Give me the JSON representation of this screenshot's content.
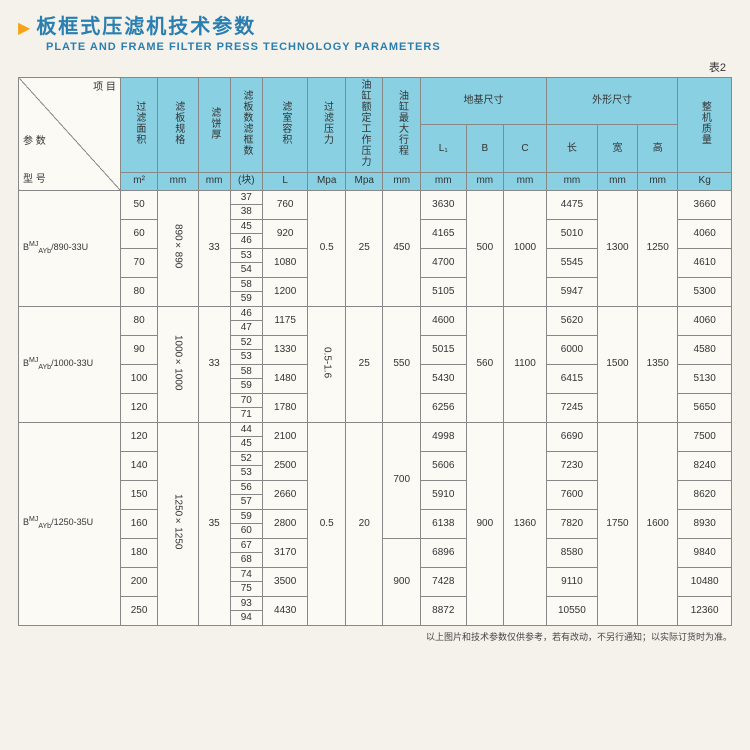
{
  "title": {
    "cn": "板框式压滤机技术参数",
    "en": "PLATE AND FRAME FILTER PRESS TECHNOLOGY PARAMETERS"
  },
  "table_label": "表2",
  "diag": {
    "top": "项 目",
    "mid": "参 数",
    "bot": "型 号"
  },
  "headers": {
    "h1": "过滤面积",
    "h2": "滤板规格",
    "h3": "滤饼厚",
    "h4": "滤板数滤框数",
    "h5": "滤室容积",
    "h6": "过滤压力",
    "h7": "油缸额定工作压力",
    "h8": "油缸最大行程",
    "h9": "地基尺寸",
    "h10": "外形尺寸",
    "h11": "整机质量",
    "l1": "L₁",
    "b": "B",
    "c": "C",
    "len": "长",
    "w": "宽",
    "ht": "高"
  },
  "units": {
    "u1": "m²",
    "u2": "mm",
    "u3": "mm",
    "u4": "(块)",
    "u5": "L",
    "u6": "Mpa",
    "u7": "Mpa",
    "u8": "mm",
    "u9": "mm",
    "u10": "mm",
    "u11": "mm",
    "u12": "mm",
    "u13": "mm",
    "u14": "mm",
    "u15": "Kg"
  },
  "g1": {
    "model_sup": "MJ",
    "model_sub": "AYb",
    "model_tail": "/890-33U",
    "plate": "890×890",
    "thick": "33",
    "fp": "0.5",
    "cp": "25",
    "stroke": "450",
    "B": "500",
    "C": "1000",
    "W": "1300",
    "H": "1250",
    "rows": [
      {
        "area": "50",
        "n1": "37",
        "n2": "38",
        "vol": "760",
        "L1": "3630",
        "len": "4475",
        "kg": "3660"
      },
      {
        "area": "60",
        "n1": "45",
        "n2": "46",
        "vol": "920",
        "L1": "4165",
        "len": "5010",
        "kg": "4060"
      },
      {
        "area": "70",
        "n1": "53",
        "n2": "54",
        "vol": "1080",
        "L1": "4700",
        "len": "5545",
        "kg": "4610"
      },
      {
        "area": "80",
        "n1": "58",
        "n2": "59",
        "vol": "1200",
        "L1": "5105",
        "len": "5947",
        "kg": "5300"
      }
    ]
  },
  "g2": {
    "model_sup": "MJ",
    "model_sub": "AYb",
    "model_tail": "/1000-33U",
    "plate": "1000×1000",
    "thick": "33",
    "fp": "0.5-1.6",
    "cp": "25",
    "stroke": "550",
    "B": "560",
    "C": "1100",
    "W": "1500",
    "H": "1350",
    "rows": [
      {
        "area": "80",
        "n1": "46",
        "n2": "47",
        "vol": "1175",
        "L1": "4600",
        "len": "5620",
        "kg": "4060"
      },
      {
        "area": "90",
        "n1": "52",
        "n2": "53",
        "vol": "1330",
        "L1": "5015",
        "len": "6000",
        "kg": "4580"
      },
      {
        "area": "100",
        "n1": "58",
        "n2": "59",
        "vol": "1480",
        "L1": "5430",
        "len": "6415",
        "kg": "5130"
      },
      {
        "area": "120",
        "n1": "70",
        "n2": "71",
        "vol": "1780",
        "L1": "6256",
        "len": "7245",
        "kg": "5650"
      }
    ]
  },
  "g3": {
    "model_sup": "MJ",
    "model_sub": "AYb",
    "model_tail": "/1250-35U",
    "plate": "1250×1250",
    "thick": "35",
    "fp": "0.5",
    "cp": "20",
    "stroke1": "700",
    "stroke2": "900",
    "B": "900",
    "C": "1360",
    "W": "1750",
    "H": "1600",
    "rows": [
      {
        "area": "120",
        "n1": "44",
        "n2": "45",
        "vol": "2100",
        "L1": "4998",
        "len": "6690",
        "kg": "7500"
      },
      {
        "area": "140",
        "n1": "52",
        "n2": "53",
        "vol": "2500",
        "L1": "5606",
        "len": "7230",
        "kg": "8240"
      },
      {
        "area": "150",
        "n1": "56",
        "n2": "57",
        "vol": "2660",
        "L1": "5910",
        "len": "7600",
        "kg": "8620"
      },
      {
        "area": "160",
        "n1": "59",
        "n2": "60",
        "vol": "2800",
        "L1": "6138",
        "len": "7820",
        "kg": "8930"
      },
      {
        "area": "180",
        "n1": "67",
        "n2": "68",
        "vol": "3170",
        "L1": "6896",
        "len": "8580",
        "kg": "9840"
      },
      {
        "area": "200",
        "n1": "74",
        "n2": "75",
        "vol": "3500",
        "L1": "7428",
        "len": "9110",
        "kg": "10480"
      },
      {
        "area": "250",
        "n1": "93",
        "n2": "94",
        "vol": "4430",
        "L1": "8872",
        "len": "10550",
        "kg": "12360"
      }
    ]
  },
  "footer": "以上图片和技术参数仅供参考，若有改动，不另行通知；以实际订货时为准。",
  "colors": {
    "header_bg": "#8ad0e3",
    "accent": "#2a7fb0",
    "tri": "#f6a31a",
    "page_bg": "#f5f2ec"
  }
}
